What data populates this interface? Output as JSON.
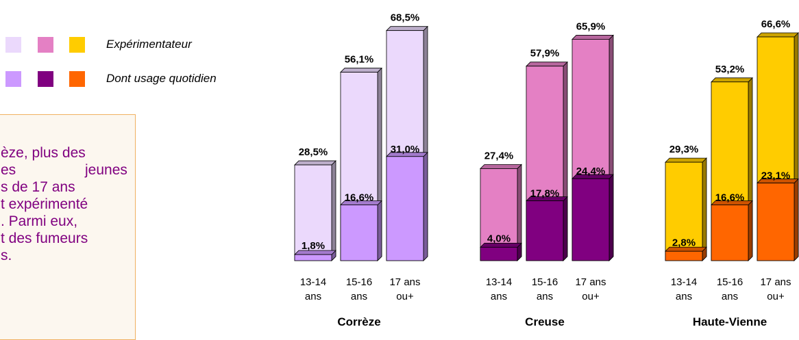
{
  "legend": {
    "items": [
      {
        "label": "Expérimentateur",
        "colors": [
          "#ebd9fc",
          "#e480c4",
          "#ffcc00"
        ]
      },
      {
        "label": "Dont usage quotidien",
        "colors": [
          "#cc99ff",
          "#800080",
          "#ff6600"
        ]
      }
    ]
  },
  "textbox": {
    "lines": [
      "èze, plus des",
      "es",
      "jeunes",
      "s de 17 ans",
      "t expérimenté",
      ". Parmi eux,",
      "t des fumeurs",
      "s."
    ]
  },
  "chart_data": {
    "type": "bar",
    "categories": [
      "13-14 ans",
      "15-16 ans",
      "17 ans ou+"
    ],
    "category_lines": [
      [
        "13-14",
        "ans"
      ],
      [
        "15-16",
        "ans"
      ],
      [
        "17 ans",
        "ou+"
      ]
    ],
    "groups": [
      {
        "name": "Corrèze",
        "experimentateur": [
          28.5,
          56.1,
          68.5
        ],
        "experimentateur_labels": [
          "28,5%",
          "56,1%",
          "68,5%"
        ],
        "quotidien": [
          1.8,
          16.6,
          31.0
        ],
        "quotidien_labels": [
          "1,8%",
          "16,6%",
          "31,0%"
        ],
        "colors": {
          "light": "#ebd9fc",
          "dark": "#cc99ff"
        }
      },
      {
        "name": "Creuse",
        "experimentateur": [
          27.4,
          57.9,
          65.9
        ],
        "experimentateur_labels": [
          "27,4%",
          "57,9%",
          "65,9%"
        ],
        "quotidien": [
          4.0,
          17.8,
          24.4
        ],
        "quotidien_labels": [
          "4,0%",
          "17,8%",
          "24,4%"
        ],
        "colors": {
          "light": "#e480c4",
          "dark": "#800080"
        }
      },
      {
        "name": "Haute-Vienne",
        "experimentateur": [
          29.3,
          53.2,
          66.6
        ],
        "experimentateur_labels": [
          "29,3%",
          "53,2%",
          "66,6%"
        ],
        "quotidien": [
          2.8,
          16.6,
          23.1
        ],
        "quotidien_labels": [
          "2,8%",
          "16,6%",
          "23,1%"
        ],
        "colors": {
          "light": "#ffcc00",
          "dark": "#ff6600"
        }
      }
    ],
    "ylim": [
      0,
      100
    ],
    "grid": false
  }
}
